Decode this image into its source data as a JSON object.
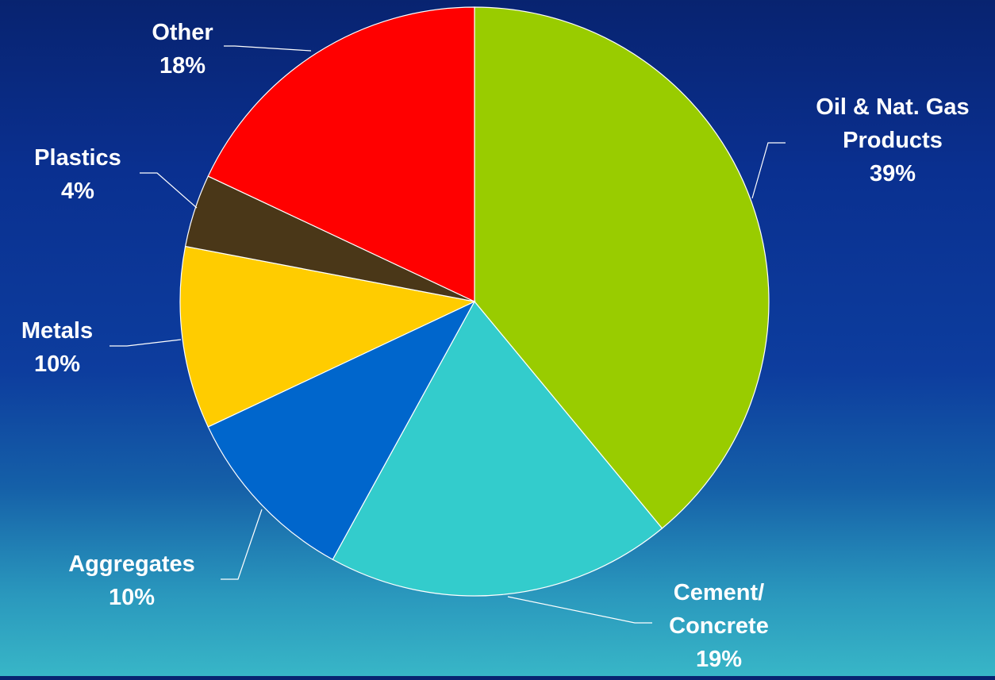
{
  "chart_data": {
    "type": "pie",
    "slices": [
      {
        "label": [
          "Oil & Nat. Gas",
          "Products"
        ],
        "value": 39,
        "pct_label": "39%",
        "color": "#99cc00"
      },
      {
        "label": [
          "Cement/",
          "Concrete"
        ],
        "value": 19,
        "pct_label": "19%",
        "color": "#33cccc"
      },
      {
        "label": [
          "Aggregates"
        ],
        "value": 10,
        "pct_label": "10%",
        "color": "#0066cc"
      },
      {
        "label": [
          "Metals"
        ],
        "value": 10,
        "pct_label": "10%",
        "color": "#ffcc00"
      },
      {
        "label": [
          "Plastics"
        ],
        "value": 4,
        "pct_label": "4%",
        "color": "#4a3718"
      },
      {
        "label": [
          "Other"
        ],
        "value": 18,
        "pct_label": "18%",
        "color": "#ff0000"
      }
    ],
    "start_angle_deg": 0,
    "direction": "clockwise",
    "slice_border_color": "#ffffff",
    "label_color": "#ffffff"
  }
}
